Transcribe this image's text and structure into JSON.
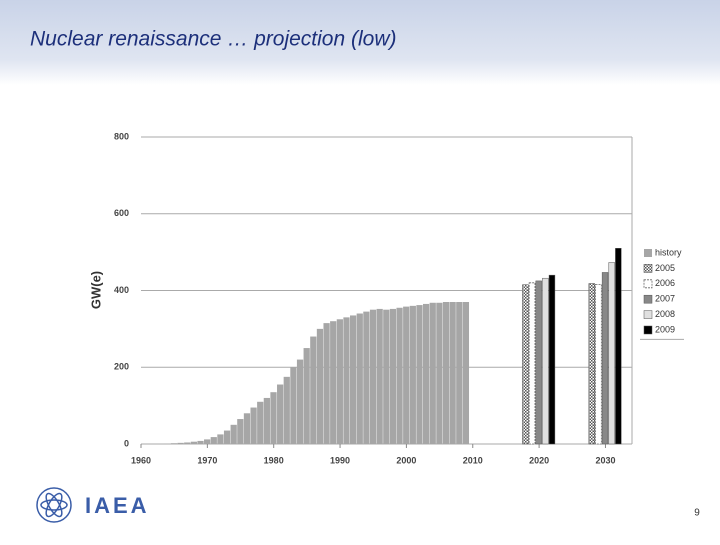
{
  "chart_data": {
    "type": "bar",
    "title": "Nuclear renaissance … projection (low)",
    "y_label": "GW(e)",
    "xlim": [
      1960,
      2034
    ],
    "xticks": [
      1960,
      1970,
      1980,
      1990,
      2000,
      2010,
      2020,
      2030
    ],
    "ylim": [
      0,
      800
    ],
    "yticks": [
      0,
      200,
      400,
      600,
      800
    ],
    "grid": true,
    "legend": "right",
    "series": [
      {
        "name": "history",
        "color": "#a6a6a6",
        "x": [
          1964,
          1965,
          1966,
          1967,
          1968,
          1969,
          1970,
          1971,
          1972,
          1973,
          1974,
          1975,
          1976,
          1977,
          1978,
          1979,
          1980,
          1981,
          1982,
          1983,
          1984,
          1985,
          1986,
          1987,
          1988,
          1989,
          1990,
          1991,
          1992,
          1993,
          1994,
          1995,
          1996,
          1997,
          1998,
          1999,
          2000,
          2001,
          2002,
          2003,
          2004,
          2005,
          2006,
          2007,
          2008,
          2009
        ],
        "values": [
          1,
          2,
          3,
          4,
          6,
          8,
          12,
          18,
          25,
          35,
          50,
          65,
          80,
          95,
          110,
          120,
          135,
          155,
          175,
          200,
          220,
          250,
          280,
          300,
          315,
          320,
          325,
          330,
          335,
          340,
          345,
          350,
          352,
          350,
          352,
          355,
          358,
          360,
          362,
          365,
          368,
          368,
          370,
          370,
          370,
          370
        ]
      },
      {
        "name": "2005",
        "color": "#8c8c8c",
        "x": [
          2020,
          2030
        ],
        "values": [
          415,
          418
        ]
      },
      {
        "name": "2006",
        "color": "#ffffff",
        "x": [
          2020,
          2030
        ],
        "values": [
          420,
          416
        ]
      },
      {
        "name": "2007",
        "color": "#888888",
        "x": [
          2020,
          2030
        ],
        "values": [
          425,
          447
        ]
      },
      {
        "name": "2008",
        "color": "#e0e0e0",
        "x": [
          2020,
          2030
        ],
        "values": [
          432,
          473
        ]
      },
      {
        "name": "2009",
        "color": "#000000",
        "x": [
          2020,
          2030
        ],
        "values": [
          440,
          510
        ]
      }
    ]
  },
  "slide": {
    "logo": "IAEA",
    "page": "9"
  }
}
